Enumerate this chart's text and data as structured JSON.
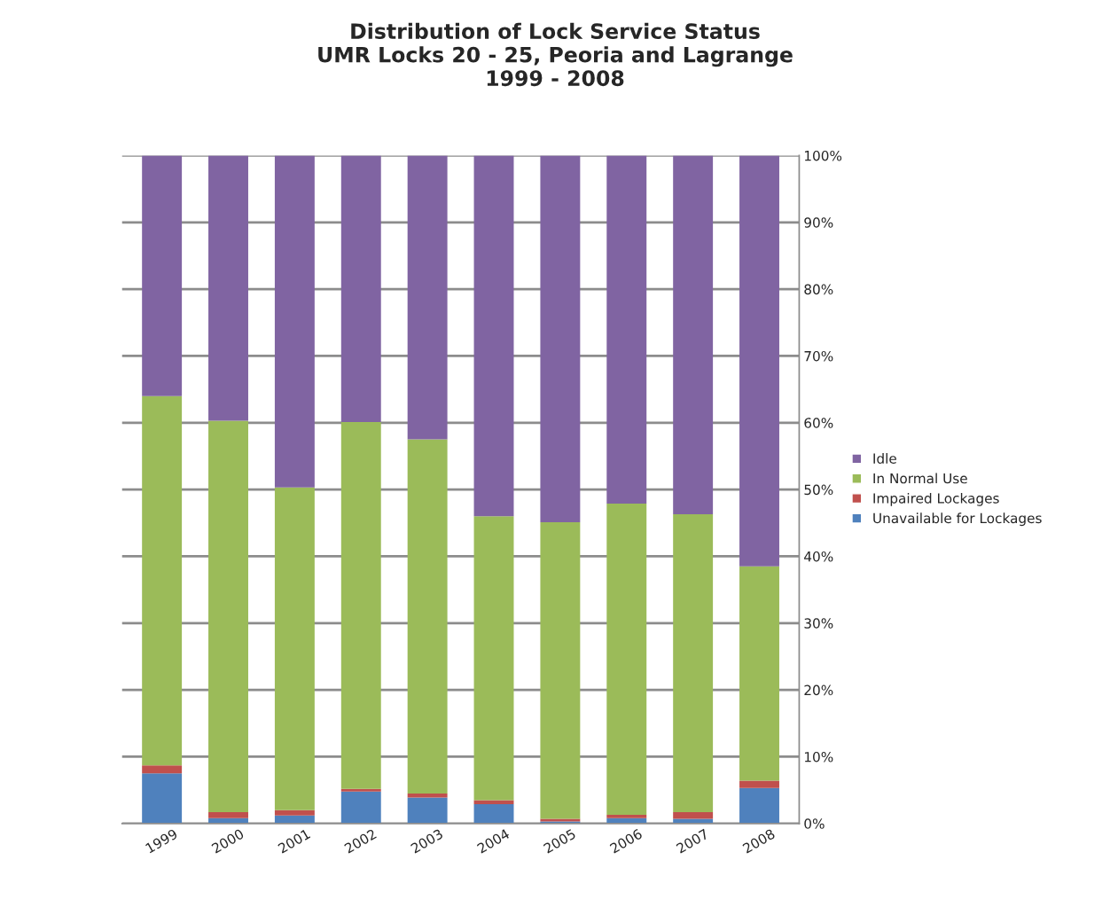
{
  "chart_data": {
    "type": "bar",
    "title": "Distribution of Lock Service Status\nUMR Locks 20 - 25, Peoria and Lagrange\n1999 - 2008",
    "categories": [
      "1999",
      "2000",
      "2001",
      "2002",
      "2003",
      "2004",
      "2005",
      "2006",
      "2007",
      "2008"
    ],
    "stacked": true,
    "series": [
      {
        "name": "Unavailable for Lockages",
        "color": "#4f81bd",
        "values": [
          7.5,
          0.8,
          1.2,
          4.8,
          3.9,
          2.9,
          0.3,
          0.8,
          0.7,
          5.3
        ]
      },
      {
        "name": "Impaired Lockages",
        "color": "#c0504d",
        "values": [
          1.2,
          0.9,
          0.8,
          0.4,
          0.6,
          0.6,
          0.4,
          0.5,
          1.0,
          1.1
        ]
      },
      {
        "name": "In Normal Use",
        "color": "#9bbb59",
        "values": [
          55.3,
          58.6,
          48.3,
          54.9,
          53.0,
          42.5,
          44.4,
          46.6,
          44.6,
          32.1
        ]
      },
      {
        "name": "Idle",
        "color": "#8064a2",
        "values": [
          36.0,
          39.7,
          49.7,
          39.9,
          42.5,
          54.0,
          54.9,
          52.1,
          53.7,
          61.5
        ]
      }
    ],
    "ylim": [
      0,
      100
    ],
    "yticks": [
      {
        "value": 0,
        "label": "0%"
      },
      {
        "value": 10,
        "label": "10%"
      },
      {
        "value": 20,
        "label": "20%"
      },
      {
        "value": 30,
        "label": "30%"
      },
      {
        "value": 40,
        "label": "40%"
      },
      {
        "value": 50,
        "label": "50%"
      },
      {
        "value": 60,
        "label": "60%"
      },
      {
        "value": 70,
        "label": "70%"
      },
      {
        "value": 80,
        "label": "80%"
      },
      {
        "value": 90,
        "label": "90%"
      },
      {
        "value": 100,
        "label": "100%"
      }
    ],
    "grid": "y",
    "legend": "right"
  }
}
